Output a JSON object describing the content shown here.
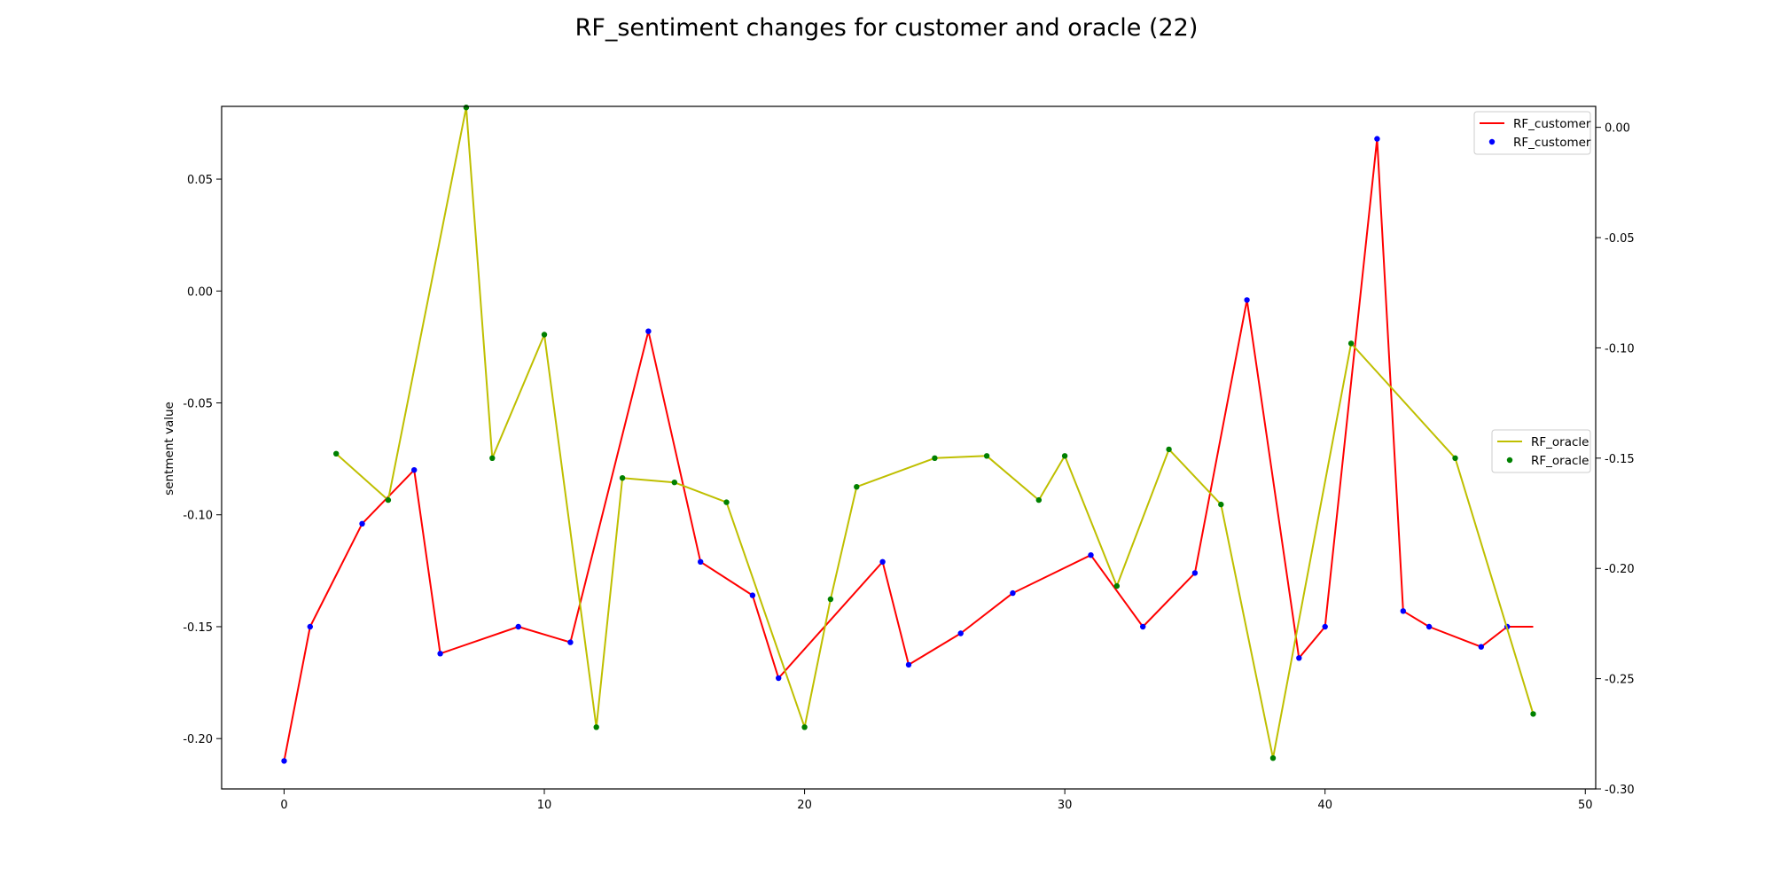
{
  "chart_data": {
    "type": "line",
    "title": "RF_sentiment changes for customer and oracle (22)",
    "xlabel": "",
    "ylabel": "sentment value",
    "xlim": [
      -2.4,
      50.4
    ],
    "ylim_left": [
      -0.2225,
      0.0825
    ],
    "ylim_right": [
      -0.3,
      0.0095
    ],
    "x_ticks": [
      "0",
      "10",
      "20",
      "30",
      "40",
      "50"
    ],
    "y_ticks_left": [
      "0.05",
      "0.00",
      "-0.05",
      "-0.10",
      "-0.15",
      "-0.20"
    ],
    "y_ticks_right": [
      "0.00",
      "-0.05",
      "-0.10",
      "-0.15",
      "-0.20",
      "-0.25",
      "-0.30"
    ],
    "grid": false,
    "series": [
      {
        "name": "RF_customer",
        "axis": "left",
        "line_color": "#ff0000",
        "marker_color": "#0000ff",
        "points": [
          [
            0,
            -0.21
          ],
          [
            1,
            -0.15
          ],
          [
            3,
            -0.104
          ],
          [
            5,
            -0.08
          ],
          [
            6,
            -0.162
          ],
          [
            9,
            -0.15
          ],
          [
            11,
            -0.157
          ],
          [
            14,
            -0.018
          ],
          [
            16,
            -0.121
          ],
          [
            18,
            -0.136
          ],
          [
            19,
            -0.173
          ],
          [
            23,
            -0.121
          ],
          [
            24,
            -0.167
          ],
          [
            26,
            -0.153
          ],
          [
            28,
            -0.135
          ],
          [
            31,
            -0.118
          ],
          [
            33,
            -0.15
          ],
          [
            35,
            -0.126
          ],
          [
            37,
            -0.004
          ],
          [
            39,
            -0.164
          ],
          [
            40,
            -0.15
          ],
          [
            42,
            0.068
          ],
          [
            43,
            -0.143
          ],
          [
            44,
            -0.15
          ],
          [
            46,
            -0.159
          ],
          [
            47,
            -0.15
          ],
          [
            48,
            -0.15
          ]
        ],
        "marker_x_skip": [
          48
        ]
      },
      {
        "name": "RF_oracle",
        "axis": "right",
        "line_color": "#bfbf00",
        "marker_color": "#008000",
        "points": [
          [
            2,
            -0.148
          ],
          [
            4,
            -0.169
          ],
          [
            7,
            0.009
          ],
          [
            8,
            -0.15
          ],
          [
            10,
            -0.094
          ],
          [
            12,
            -0.272
          ],
          [
            13,
            -0.159
          ],
          [
            15,
            -0.161
          ],
          [
            17,
            -0.17
          ],
          [
            20,
            -0.272
          ],
          [
            21,
            -0.214
          ],
          [
            22,
            -0.163
          ],
          [
            25,
            -0.15
          ],
          [
            27,
            -0.149
          ],
          [
            29,
            -0.169
          ],
          [
            30,
            -0.149
          ],
          [
            32,
            -0.208
          ],
          [
            34,
            -0.146
          ],
          [
            36,
            -0.171
          ],
          [
            38,
            -0.286
          ],
          [
            41,
            -0.098
          ],
          [
            45,
            -0.15
          ],
          [
            48,
            -0.266
          ]
        ],
        "marker_x_skip": []
      }
    ],
    "legends": [
      {
        "placement": "top-right",
        "entries": [
          "RF_customer",
          "RF_customer"
        ]
      },
      {
        "placement": "center-right",
        "entries": [
          "RF_oracle",
          "RF_oracle"
        ]
      }
    ]
  }
}
